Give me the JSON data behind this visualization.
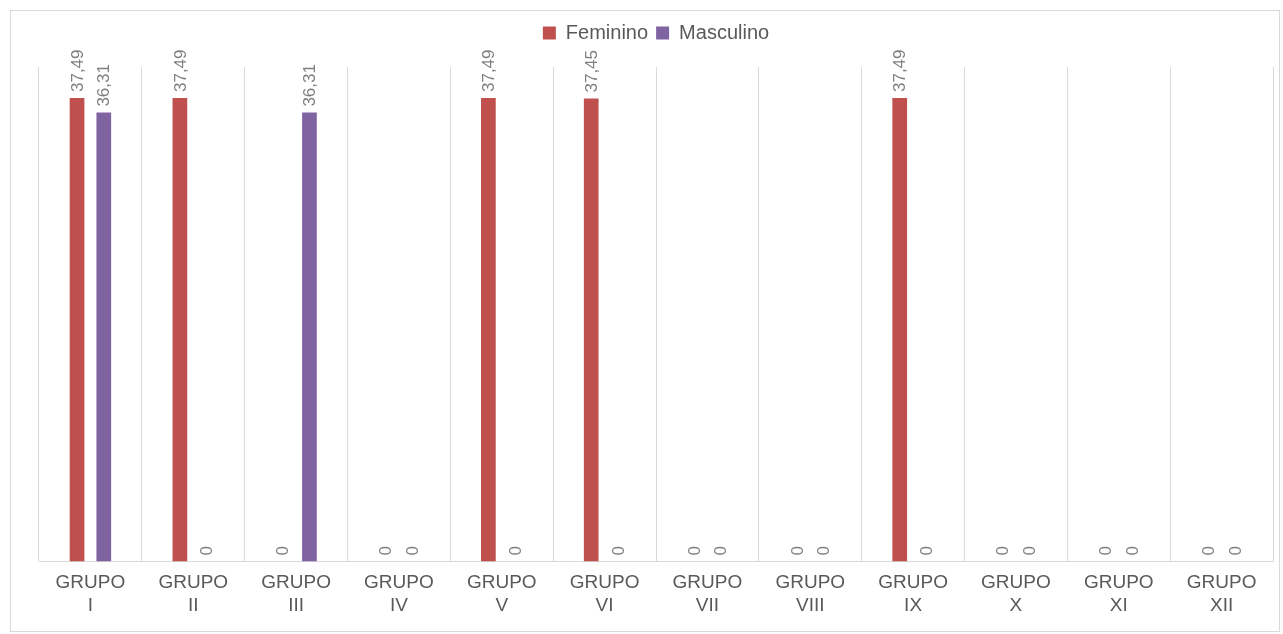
{
  "chart_data": {
    "type": "bar",
    "categories": [
      "GRUPO I",
      "GRUPO II",
      "GRUPO III",
      "GRUPO IV",
      "GRUPO V",
      "GRUPO VI",
      "GRUPO VII",
      "GRUPO VIII",
      "GRUPO IX",
      "GRUPO X",
      "GRUPO XI",
      "GRUPO XII"
    ],
    "series": [
      {
        "name": "Feminino",
        "color": "#c0504d",
        "values": [
          37.49,
          37.49,
          0,
          0,
          37.49,
          37.45,
          0,
          0,
          37.49,
          0,
          0,
          0
        ],
        "value_labels": [
          "37,49",
          "37,49",
          "0",
          "0",
          "37,49",
          "37,45",
          "0",
          "0",
          "37,49",
          "0",
          "0",
          "0"
        ]
      },
      {
        "name": "Masculino",
        "color": "#8064a2",
        "values": [
          36.31,
          0,
          36.31,
          0,
          0,
          0,
          0,
          0,
          0,
          0,
          0,
          0
        ],
        "value_labels": [
          "36,31",
          "0",
          "36,31",
          "0",
          "0",
          "0",
          "0",
          "0",
          "0",
          "0",
          "0",
          "0"
        ]
      }
    ],
    "legend": "top",
    "grid": "x"
  }
}
